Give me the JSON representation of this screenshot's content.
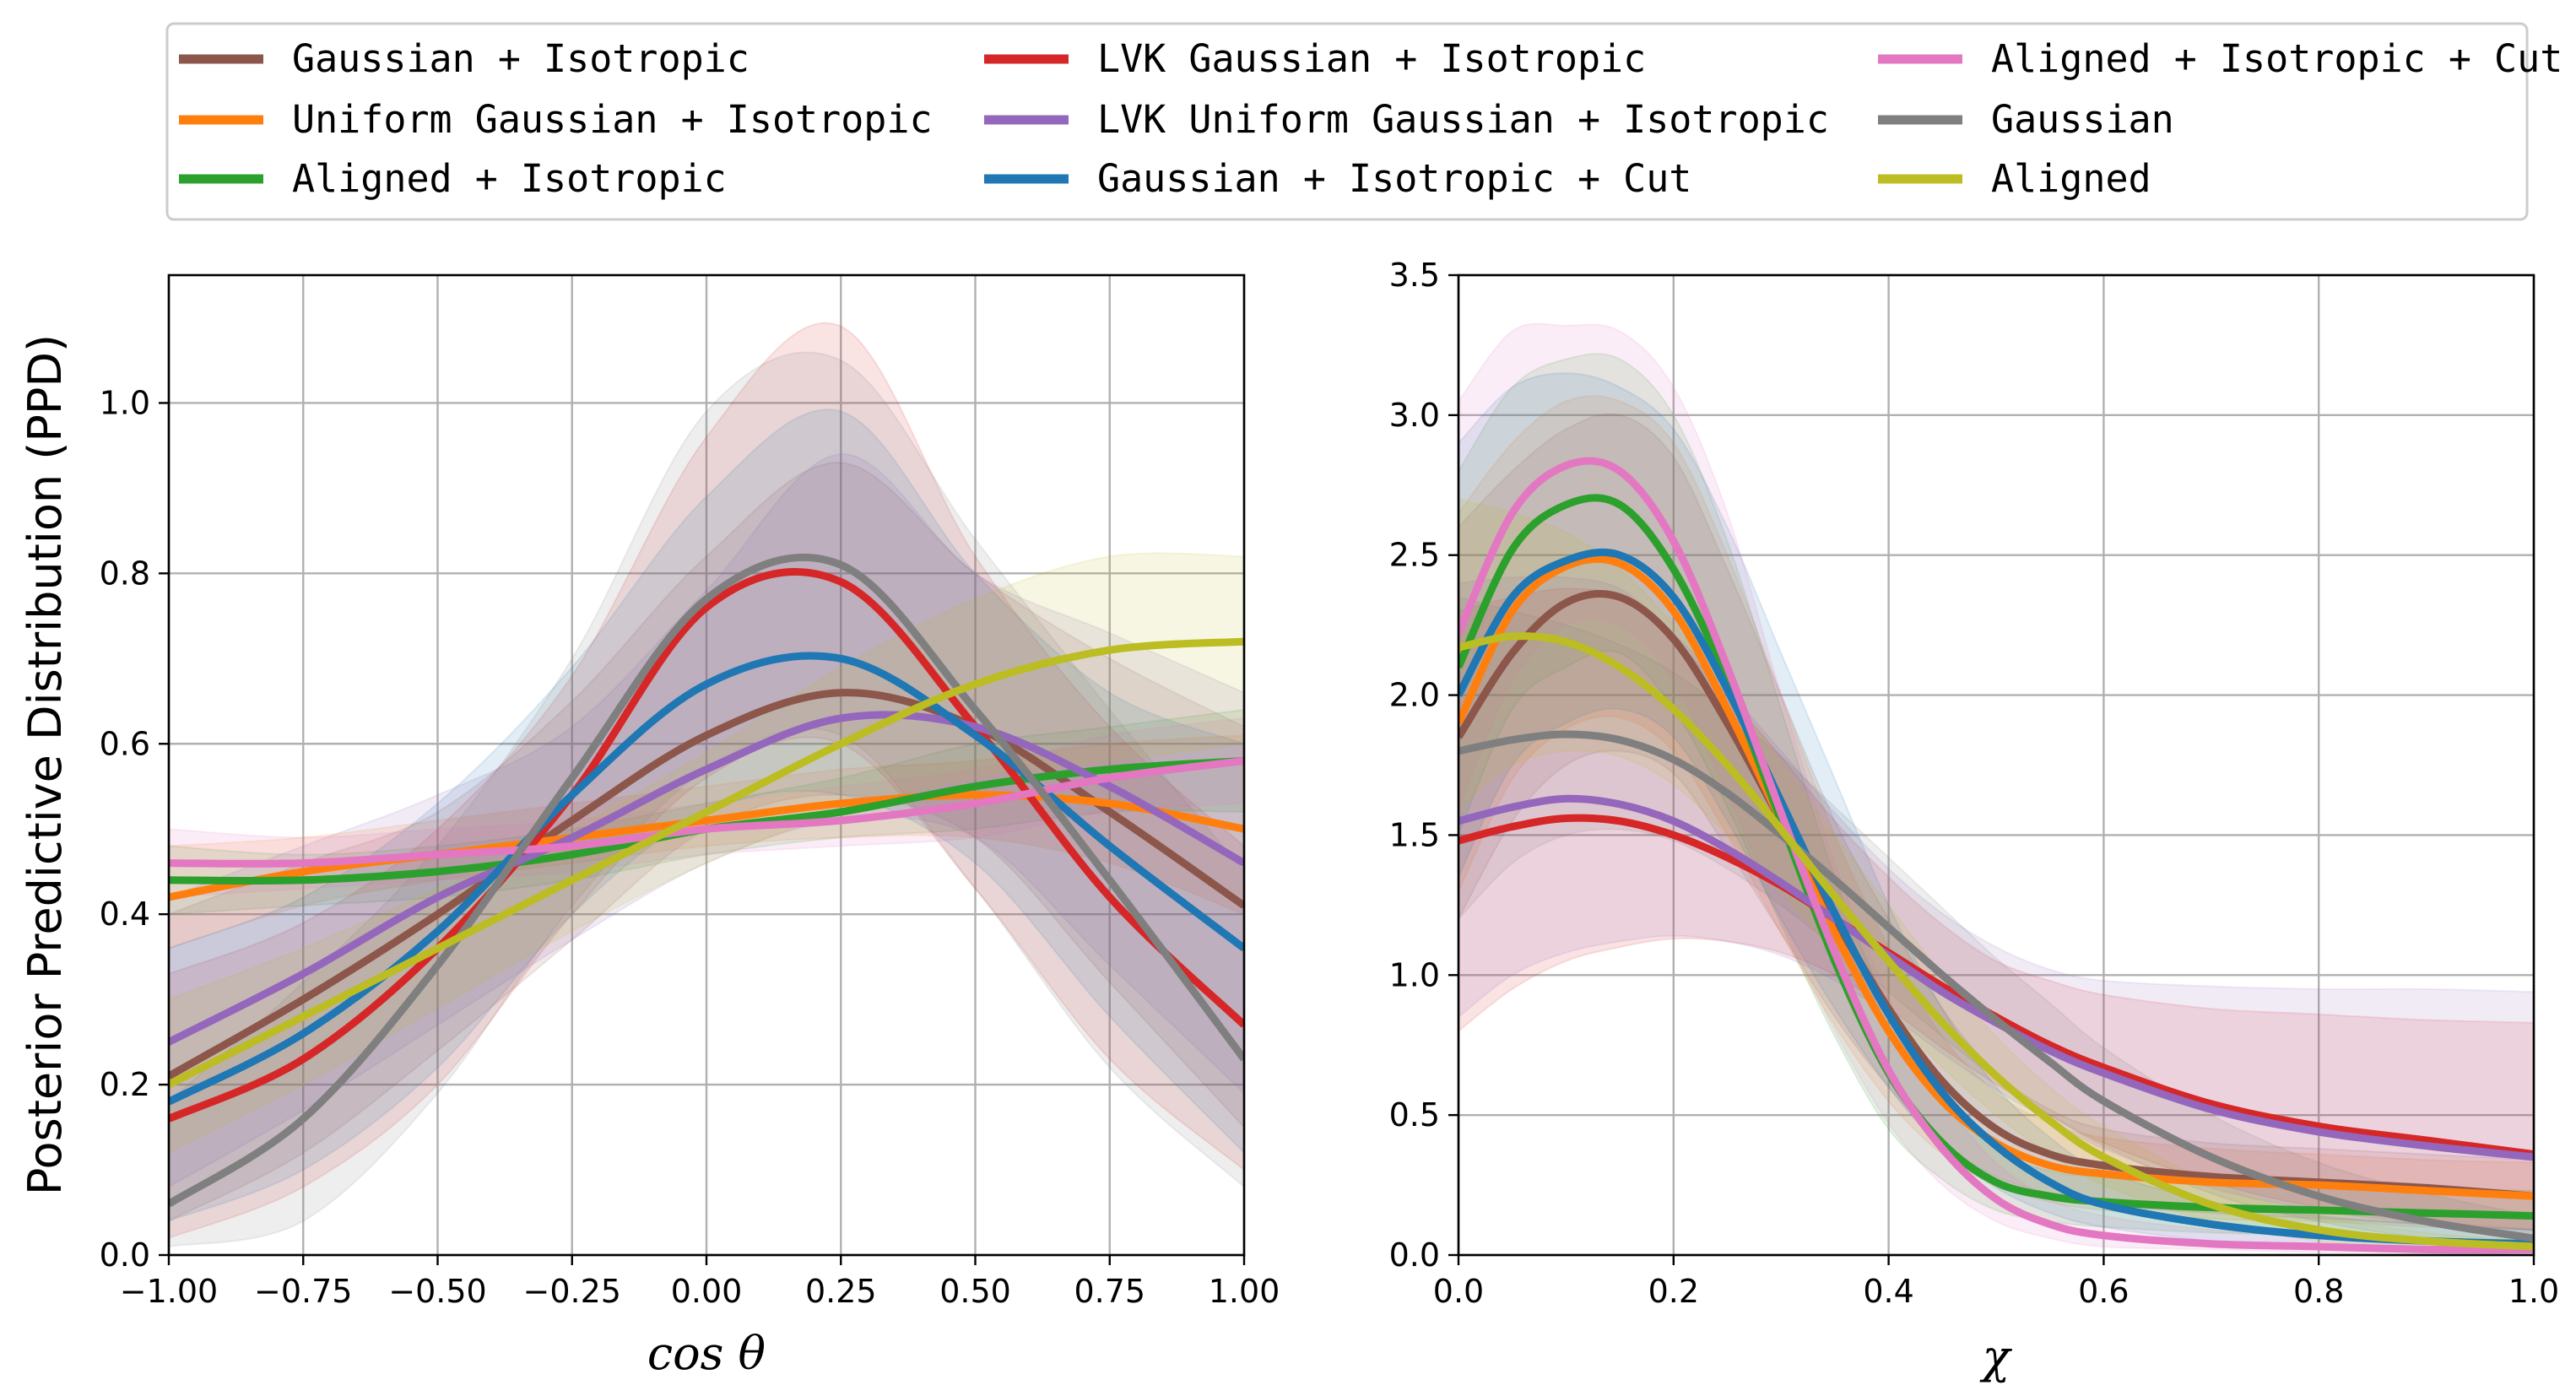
{
  "figure": {
    "ylabel": "Posterior Predictive Distribution (PPD)"
  },
  "legend": {
    "location": "top",
    "columns": 3,
    "entries": [
      {
        "label": "Gaussian + Isotropic",
        "color": "#8c564b"
      },
      {
        "label": "Uniform Gaussian + Isotropic",
        "color": "#ff7f0e"
      },
      {
        "label": "Aligned + Isotropic",
        "color": "#2ca02c"
      },
      {
        "label": "LVK Gaussian + Isotropic",
        "color": "#d62728"
      },
      {
        "label": "LVK Uniform Gaussian + Isotropic",
        "color": "#9467bd"
      },
      {
        "label": "Gaussian + Isotropic + Cut",
        "color": "#1f77b4"
      },
      {
        "label": "Aligned + Isotropic + Cut",
        "color": "#e377c2"
      },
      {
        "label": "Gaussian",
        "color": "#7f7f7f"
      },
      {
        "label": "Aligned",
        "color": "#bcbd22"
      }
    ]
  },
  "chart_data": [
    {
      "type": "line",
      "xlabel": "cos θ",
      "ylabel": "Posterior Predictive Distribution (PPD)",
      "xlim": [
        -1.0,
        1.0
      ],
      "ylim": [
        0.0,
        1.15
      ],
      "grid": true,
      "x_ticks": [
        "−1.00",
        "−0.75",
        "−0.50",
        "−0.25",
        "0.00",
        "0.25",
        "0.50",
        "0.75",
        "1.00"
      ],
      "y_ticks": [
        "0.0",
        "0.2",
        "0.4",
        "0.6",
        "0.8",
        "1.0"
      ],
      "x": [
        -1.0,
        -0.75,
        -0.5,
        -0.25,
        0.0,
        0.25,
        0.5,
        0.75,
        1.0
      ],
      "series": [
        {
          "name": "Gaussian + Isotropic",
          "color": "#8c564b",
          "values": [
            0.21,
            0.3,
            0.4,
            0.51,
            0.61,
            0.66,
            0.62,
            0.52,
            0.41
          ],
          "lower": [
            0.04,
            0.12,
            0.24,
            0.37,
            0.5,
            0.54,
            0.49,
            0.32,
            0.15
          ],
          "upper": [
            0.4,
            0.46,
            0.52,
            0.65,
            0.82,
            0.93,
            0.8,
            0.7,
            0.62
          ]
        },
        {
          "name": "Uniform Gaussian + Isotropic",
          "color": "#ff7f0e",
          "values": [
            0.42,
            0.45,
            0.47,
            0.49,
            0.51,
            0.53,
            0.54,
            0.53,
            0.5
          ],
          "lower": [
            0.36,
            0.41,
            0.44,
            0.46,
            0.48,
            0.49,
            0.49,
            0.46,
            0.4
          ],
          "upper": [
            0.48,
            0.49,
            0.51,
            0.53,
            0.55,
            0.57,
            0.58,
            0.6,
            0.61
          ]
        },
        {
          "name": "Aligned + Isotropic",
          "color": "#2ca02c",
          "values": [
            0.44,
            0.44,
            0.45,
            0.47,
            0.5,
            0.52,
            0.55,
            0.57,
            0.58
          ],
          "lower": [
            0.4,
            0.41,
            0.42,
            0.44,
            0.47,
            0.49,
            0.5,
            0.52,
            0.52
          ],
          "upper": [
            0.48,
            0.47,
            0.48,
            0.5,
            0.53,
            0.56,
            0.6,
            0.62,
            0.64
          ]
        },
        {
          "name": "LVK Gaussian + Isotropic",
          "color": "#d62728",
          "values": [
            0.16,
            0.23,
            0.36,
            0.54,
            0.76,
            0.79,
            0.62,
            0.42,
            0.27
          ],
          "lower": [
            0.02,
            0.08,
            0.2,
            0.4,
            0.56,
            0.6,
            0.43,
            0.23,
            0.1
          ],
          "upper": [
            0.33,
            0.39,
            0.5,
            0.68,
            0.96,
            1.09,
            0.82,
            0.62,
            0.48
          ]
        },
        {
          "name": "LVK Uniform Gaussian + Isotropic",
          "color": "#9467bd",
          "values": [
            0.25,
            0.33,
            0.42,
            0.49,
            0.57,
            0.63,
            0.62,
            0.55,
            0.46
          ],
          "lower": [
            0.08,
            0.17,
            0.27,
            0.37,
            0.46,
            0.51,
            0.49,
            0.34,
            0.19
          ],
          "upper": [
            0.42,
            0.48,
            0.54,
            0.62,
            0.78,
            0.94,
            0.8,
            0.73,
            0.66
          ]
        },
        {
          "name": "Gaussian + Isotropic + Cut",
          "color": "#1f77b4",
          "values": [
            0.18,
            0.26,
            0.38,
            0.54,
            0.67,
            0.7,
            0.61,
            0.48,
            0.36
          ],
          "lower": [
            0.04,
            0.1,
            0.22,
            0.4,
            0.52,
            0.54,
            0.46,
            0.28,
            0.12
          ],
          "upper": [
            0.36,
            0.42,
            0.53,
            0.69,
            0.89,
            0.99,
            0.8,
            0.66,
            0.6
          ]
        },
        {
          "name": "Aligned + Isotropic + Cut",
          "color": "#e377c2",
          "values": [
            0.46,
            0.46,
            0.47,
            0.48,
            0.5,
            0.51,
            0.53,
            0.56,
            0.58
          ],
          "lower": [
            0.42,
            0.43,
            0.44,
            0.45,
            0.47,
            0.48,
            0.49,
            0.52,
            0.53
          ],
          "upper": [
            0.5,
            0.49,
            0.5,
            0.51,
            0.53,
            0.55,
            0.57,
            0.61,
            0.63
          ]
        },
        {
          "name": "Gaussian",
          "color": "#7f7f7f",
          "values": [
            0.06,
            0.16,
            0.34,
            0.56,
            0.77,
            0.81,
            0.64,
            0.44,
            0.23
          ],
          "lower": [
            0.01,
            0.04,
            0.19,
            0.41,
            0.57,
            0.61,
            0.43,
            0.22,
            0.08
          ],
          "upper": [
            0.18,
            0.32,
            0.48,
            0.7,
            0.99,
            1.05,
            0.84,
            0.64,
            0.45
          ]
        },
        {
          "name": "Aligned",
          "color": "#bcbd22",
          "values": [
            0.2,
            0.28,
            0.36,
            0.44,
            0.52,
            0.6,
            0.67,
            0.71,
            0.72
          ],
          "lower": [
            0.12,
            0.2,
            0.29,
            0.38,
            0.46,
            0.52,
            0.56,
            0.58,
            0.6
          ],
          "upper": [
            0.3,
            0.36,
            0.43,
            0.5,
            0.59,
            0.69,
            0.77,
            0.82,
            0.82
          ]
        }
      ]
    },
    {
      "type": "line",
      "xlabel": "χ",
      "ylabel": "",
      "xlim": [
        0.0,
        1.0
      ],
      "ylim": [
        0.0,
        3.5
      ],
      "grid": true,
      "x_ticks": [
        "0.0",
        "0.2",
        "0.4",
        "0.6",
        "0.8",
        "1.0"
      ],
      "y_ticks": [
        "0.0",
        "0.5",
        "1.0",
        "1.5",
        "2.0",
        "2.5",
        "3.0",
        "3.5"
      ],
      "x": [
        0.0,
        0.05,
        0.1,
        0.15,
        0.2,
        0.25,
        0.3,
        0.35,
        0.4,
        0.45,
        0.5,
        0.55,
        0.6,
        0.7,
        0.8,
        0.9,
        1.0
      ],
      "series": [
        {
          "name": "Gaussian + Isotropic",
          "color": "#8c564b",
          "values": [
            1.85,
            2.15,
            2.33,
            2.35,
            2.2,
            1.9,
            1.55,
            1.2,
            0.88,
            0.62,
            0.45,
            0.36,
            0.32,
            0.28,
            0.26,
            0.24,
            0.21
          ],
          "lower": [
            1.2,
            1.55,
            1.75,
            1.8,
            1.72,
            1.45,
            1.15,
            0.85,
            0.6,
            0.4,
            0.28,
            0.22,
            0.18,
            0.15,
            0.13,
            0.11,
            0.09
          ],
          "upper": [
            2.6,
            2.8,
            2.95,
            3.0,
            2.85,
            2.45,
            2.0,
            1.55,
            1.2,
            0.88,
            0.65,
            0.52,
            0.45,
            0.4,
            0.38,
            0.36,
            0.34
          ]
        },
        {
          "name": "Uniform Gaussian + Isotropic",
          "color": "#ff7f0e",
          "values": [
            1.9,
            2.3,
            2.46,
            2.47,
            2.3,
            1.95,
            1.55,
            1.15,
            0.8,
            0.55,
            0.4,
            0.32,
            0.29,
            0.26,
            0.25,
            0.23,
            0.21
          ],
          "lower": [
            1.3,
            1.7,
            1.88,
            1.92,
            1.8,
            1.5,
            1.15,
            0.82,
            0.55,
            0.36,
            0.25,
            0.19,
            0.16,
            0.13,
            0.12,
            0.1,
            0.09
          ],
          "upper": [
            2.65,
            2.9,
            3.05,
            3.05,
            2.9,
            2.5,
            2.0,
            1.5,
            1.1,
            0.78,
            0.58,
            0.47,
            0.42,
            0.38,
            0.36,
            0.34,
            0.33
          ]
        },
        {
          "name": "Aligned + Isotropic",
          "color": "#2ca02c",
          "values": [
            2.1,
            2.52,
            2.68,
            2.68,
            2.45,
            2.05,
            1.55,
            1.05,
            0.65,
            0.4,
            0.26,
            0.21,
            0.19,
            0.17,
            0.16,
            0.15,
            0.14
          ],
          "lower": [
            1.5,
            1.95,
            2.1,
            2.15,
            1.95,
            1.6,
            1.18,
            0.78,
            0.45,
            0.27,
            0.16,
            0.12,
            0.1,
            0.08,
            0.07,
            0.06,
            0.05
          ],
          "upper": [
            2.8,
            3.1,
            3.2,
            3.2,
            3.0,
            2.55,
            1.95,
            1.35,
            0.88,
            0.56,
            0.38,
            0.3,
            0.28,
            0.26,
            0.25,
            0.24,
            0.23
          ]
        },
        {
          "name": "LVK Gaussian + Isotropic",
          "color": "#d62728",
          "values": [
            1.48,
            1.53,
            1.56,
            1.55,
            1.5,
            1.42,
            1.32,
            1.2,
            1.08,
            0.96,
            0.85,
            0.75,
            0.67,
            0.54,
            0.46,
            0.41,
            0.36
          ],
          "lower": [
            0.8,
            0.95,
            1.05,
            1.1,
            1.13,
            1.12,
            1.08,
            1.0,
            0.88,
            0.74,
            0.61,
            0.5,
            0.4,
            0.26,
            0.17,
            0.12,
            0.09
          ],
          "upper": [
            2.3,
            2.35,
            2.38,
            2.35,
            2.2,
            2.0,
            1.78,
            1.55,
            1.35,
            1.18,
            1.05,
            0.98,
            0.93,
            0.88,
            0.86,
            0.84,
            0.83
          ]
        },
        {
          "name": "LVK Uniform Gaussian + Isotropic",
          "color": "#9467bd",
          "values": [
            1.55,
            1.6,
            1.63,
            1.61,
            1.55,
            1.45,
            1.33,
            1.2,
            1.07,
            0.94,
            0.83,
            0.73,
            0.65,
            0.52,
            0.44,
            0.39,
            0.35
          ],
          "lower": [
            0.85,
            1.0,
            1.08,
            1.12,
            1.14,
            1.12,
            1.07,
            0.98,
            0.86,
            0.72,
            0.59,
            0.48,
            0.38,
            0.24,
            0.16,
            0.11,
            0.08
          ],
          "upper": [
            2.4,
            2.42,
            2.42,
            2.38,
            2.22,
            2.02,
            1.8,
            1.58,
            1.38,
            1.22,
            1.1,
            1.02,
            0.98,
            0.96,
            0.95,
            0.95,
            0.94
          ]
        },
        {
          "name": "Gaussian + Isotropic + Cut",
          "color": "#1f77b4",
          "values": [
            2.0,
            2.35,
            2.48,
            2.5,
            2.35,
            2.02,
            1.62,
            1.22,
            0.86,
            0.58,
            0.39,
            0.26,
            0.18,
            0.11,
            0.07,
            0.05,
            0.04
          ],
          "lower": [
            1.35,
            1.75,
            1.9,
            1.95,
            1.85,
            1.55,
            1.2,
            0.88,
            0.6,
            0.38,
            0.24,
            0.15,
            0.1,
            0.05,
            0.03,
            0.02,
            0.01
          ],
          "upper": [
            2.9,
            3.1,
            3.15,
            3.1,
            2.95,
            2.6,
            2.15,
            1.7,
            1.25,
            0.88,
            0.6,
            0.42,
            0.3,
            0.19,
            0.14,
            0.11,
            0.09
          ]
        },
        {
          "name": "Aligned + Isotropic + Cut",
          "color": "#e377c2",
          "values": [
            2.22,
            2.65,
            2.82,
            2.8,
            2.55,
            2.1,
            1.58,
            1.08,
            0.66,
            0.38,
            0.2,
            0.11,
            0.07,
            0.04,
            0.03,
            0.02,
            0.02
          ],
          "lower": [
            1.6,
            2.05,
            2.25,
            2.25,
            2.05,
            1.65,
            1.2,
            0.8,
            0.47,
            0.25,
            0.12,
            0.06,
            0.03,
            0.02,
            0.01,
            0.01,
            0.0
          ],
          "upper": [
            3.05,
            3.3,
            3.32,
            3.3,
            3.1,
            2.65,
            2.0,
            1.4,
            0.92,
            0.56,
            0.33,
            0.2,
            0.14,
            0.09,
            0.07,
            0.06,
            0.05
          ]
        },
        {
          "name": "Gaussian",
          "color": "#7f7f7f",
          "values": [
            1.8,
            1.84,
            1.86,
            1.84,
            1.77,
            1.65,
            1.5,
            1.34,
            1.17,
            1.0,
            0.84,
            0.69,
            0.55,
            0.35,
            0.21,
            0.12,
            0.06
          ],
          "lower": [
            1.2,
            1.4,
            1.5,
            1.52,
            1.48,
            1.38,
            1.25,
            1.1,
            0.94,
            0.78,
            0.63,
            0.5,
            0.39,
            0.22,
            0.12,
            0.06,
            0.03
          ],
          "upper": [
            2.35,
            2.3,
            2.25,
            2.18,
            2.08,
            1.94,
            1.78,
            1.6,
            1.42,
            1.24,
            1.06,
            0.9,
            0.74,
            0.5,
            0.33,
            0.22,
            0.14
          ]
        },
        {
          "name": "Aligned",
          "color": "#bcbd22",
          "values": [
            2.17,
            2.21,
            2.19,
            2.1,
            1.95,
            1.75,
            1.52,
            1.28,
            1.05,
            0.83,
            0.64,
            0.48,
            0.35,
            0.18,
            0.09,
            0.05,
            0.03
          ],
          "lower": [
            1.6,
            1.75,
            1.8,
            1.78,
            1.68,
            1.5,
            1.3,
            1.08,
            0.87,
            0.67,
            0.5,
            0.36,
            0.25,
            0.12,
            0.05,
            0.02,
            0.01
          ],
          "upper": [
            2.7,
            2.65,
            2.58,
            2.45,
            2.25,
            2.02,
            1.76,
            1.5,
            1.25,
            1.0,
            0.78,
            0.6,
            0.46,
            0.26,
            0.14,
            0.08,
            0.05
          ]
        }
      ]
    }
  ]
}
